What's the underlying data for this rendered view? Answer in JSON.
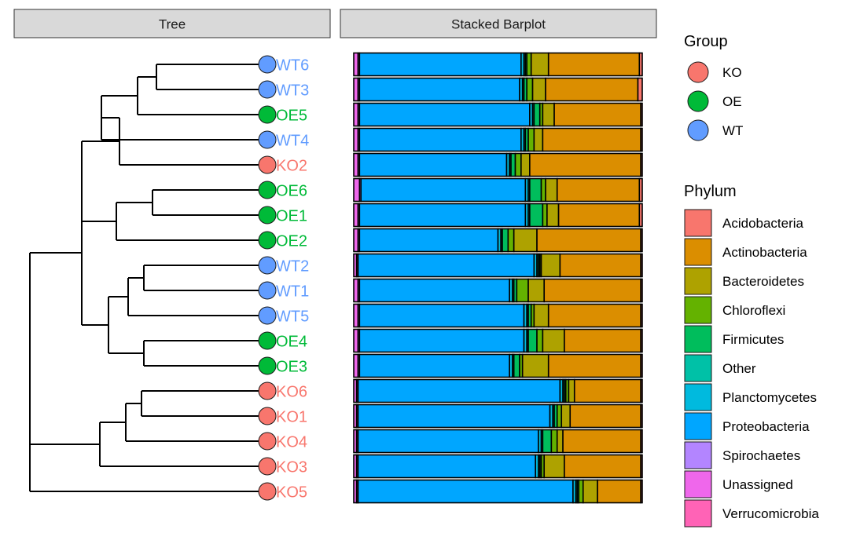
{
  "chart_data": {
    "type": "bar",
    "layout": "horizontal-stacked-percent-with-dendrogram",
    "panels": {
      "tree_title": "Tree",
      "barplot_title": "Stacked Barplot"
    },
    "group_legend": {
      "title": "Group",
      "items": [
        {
          "name": "KO",
          "color": "#F8766D"
        },
        {
          "name": "OE",
          "color": "#00BA38"
        },
        {
          "name": "WT",
          "color": "#619CFF"
        }
      ]
    },
    "phylum_legend": {
      "title": "Phylum",
      "items": [
        {
          "name": "Acidobacteria",
          "color": "#F8766D"
        },
        {
          "name": "Actinobacteria",
          "color": "#DB8E00"
        },
        {
          "name": "Bacteroidetes",
          "color": "#AEA200"
        },
        {
          "name": "Chloroflexi",
          "color": "#64B200"
        },
        {
          "name": "Firmicutes",
          "color": "#00BD5C"
        },
        {
          "name": "Other",
          "color": "#00C1A7"
        },
        {
          "name": "Planctomycetes",
          "color": "#00BADE"
        },
        {
          "name": "Proteobacteria",
          "color": "#00A6FF"
        },
        {
          "name": "Spirochaetes",
          "color": "#B385FF"
        },
        {
          "name": "Unassigned",
          "color": "#EF67EB"
        },
        {
          "name": "Verrucomicrobia",
          "color": "#FF63B6"
        }
      ]
    },
    "stack_order": [
      "Unassigned",
      "Spirochaetes",
      "Proteobacteria",
      "Planctomycetes",
      "Other",
      "Firmicutes",
      "Chloroflexi",
      "Bacteroidetes",
      "Actinobacteria",
      "Acidobacteria"
    ],
    "samples": [
      {
        "name": "WT6",
        "group": "WT",
        "values": [
          1.5,
          0.5,
          56,
          1,
          0.5,
          0.5,
          1.5,
          6,
          31.5,
          1
        ]
      },
      {
        "name": "WT3",
        "group": "WT",
        "values": [
          1.5,
          0.5,
          55.5,
          1,
          0.5,
          1,
          2,
          4.5,
          32,
          1.5
        ]
      },
      {
        "name": "OE5",
        "group": "OE",
        "values": [
          1.5,
          0.5,
          59,
          1,
          0.5,
          2,
          1,
          4,
          30,
          0.5
        ]
      },
      {
        "name": "WT4",
        "group": "WT",
        "values": [
          1.5,
          0.5,
          56,
          1,
          0.5,
          1,
          2,
          3,
          34,
          0.5
        ]
      },
      {
        "name": "KO2",
        "group": "KO",
        "values": [
          1.5,
          0.5,
          51,
          1,
          0.5,
          1.5,
          2,
          3,
          38.5,
          0.5
        ]
      },
      {
        "name": "OE6",
        "group": "OE",
        "values": [
          2,
          0.5,
          57,
          1,
          0.5,
          4,
          1.5,
          4,
          28.5,
          1
        ]
      },
      {
        "name": "OE1",
        "group": "OE",
        "values": [
          1.5,
          0.5,
          57.5,
          1,
          0.5,
          4.5,
          1.5,
          4,
          28,
          1
        ]
      },
      {
        "name": "OE2",
        "group": "OE",
        "values": [
          1.5,
          0.5,
          48,
          1,
          0.5,
          2,
          2,
          8,
          36,
          0.5
        ]
      },
      {
        "name": "WT2",
        "group": "WT",
        "values": [
          1,
          0.5,
          61,
          1,
          0.5,
          0.5,
          0.5,
          6.5,
          28,
          0.5
        ]
      },
      {
        "name": "WT1",
        "group": "WT",
        "values": [
          1.5,
          0.5,
          52,
          1,
          0.5,
          1,
          4,
          5.5,
          33.5,
          0.5
        ]
      },
      {
        "name": "WT5",
        "group": "WT",
        "values": [
          1.5,
          0.5,
          57,
          1,
          0.5,
          1,
          1,
          5,
          32,
          0.5
        ]
      },
      {
        "name": "OE4",
        "group": "OE",
        "values": [
          1.5,
          0.5,
          57,
          1,
          0.5,
          3,
          2,
          7.5,
          26.5,
          0.5
        ]
      },
      {
        "name": "OE3",
        "group": "OE",
        "values": [
          1.5,
          0.5,
          52,
          1,
          0.5,
          2,
          1,
          9,
          32,
          0.5
        ]
      },
      {
        "name": "KO6",
        "group": "KO",
        "values": [
          1,
          0.5,
          70,
          1,
          0.5,
          0.5,
          1,
          2,
          23,
          0.5
        ]
      },
      {
        "name": "KO1",
        "group": "KO",
        "values": [
          1,
          0.5,
          66.5,
          1,
          0.5,
          1,
          1.5,
          3,
          24.5,
          0.5
        ]
      },
      {
        "name": "KO4",
        "group": "KO",
        "values": [
          1,
          0.5,
          62.5,
          1,
          0.5,
          3,
          2,
          2,
          27,
          0.5
        ]
      },
      {
        "name": "KO3",
        "group": "KO",
        "values": [
          1,
          0.5,
          61.5,
          1,
          0.5,
          0.5,
          1,
          7,
          26.5,
          0.5
        ]
      },
      {
        "name": "KO5",
        "group": "KO",
        "values": [
          1,
          0.5,
          74.5,
          1,
          0.5,
          0.5,
          1.5,
          5,
          15,
          0.5
        ]
      }
    ],
    "tree_newick": "(((((((WT6,WT3),OE5),WT4),KO2),((OE6,OE1),OE2)),(((WT2,WT1),WT5),(OE4,OE3))),((((KO6,KO1),KO4),KO3),KO5));"
  }
}
